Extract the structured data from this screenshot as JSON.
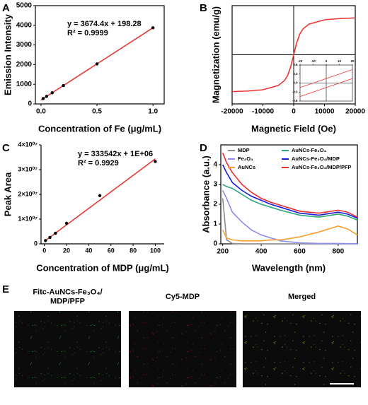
{
  "chart_data": [
    {
      "type": "scatter",
      "panel_label": "A",
      "xlabel": "Concentration of Fe (μg/mL)",
      "ylabel": "Emission Intensity",
      "x": [
        0.02,
        0.05,
        0.1,
        0.2,
        0.5,
        1.0
      ],
      "values": [
        272,
        382,
        566,
        933,
        2035,
        3873
      ],
      "fit": {
        "x": [
          0,
          1.0
        ],
        "values": [
          198.28,
          3872.68
        ]
      },
      "annotations": [
        "y = 3674.4x + 198.28",
        "R² = 0.9999"
      ],
      "point_color": "#000000",
      "color": "#e53935",
      "xlim": [
        -0.05,
        1.1
      ],
      "ylim": [
        0,
        5000
      ],
      "xticks": [
        {
          "value": 0,
          "label": "0.0"
        },
        0.5,
        {
          "value": 1.0,
          "label": "1.0"
        }
      ],
      "yticks": [
        0,
        1000,
        2000,
        3000,
        4000,
        5000
      ]
    },
    {
      "type": "line",
      "panel_label": "B",
      "xlabel": "Magnetic Field (Oe)",
      "ylabel": "Magnetization (emu/g)",
      "x": [
        -20000,
        -15000,
        -10000,
        -5000,
        -3000,
        -2000,
        -1000,
        -500,
        0,
        500,
        1000,
        2000,
        3000,
        5000,
        10000,
        15000,
        20000
      ],
      "values": [
        -30,
        -29.5,
        -28.5,
        -25,
        -21,
        -17,
        -10,
        -5,
        0,
        5,
        10,
        17,
        21,
        25,
        28.5,
        29.5,
        30
      ],
      "color": "#ee3333",
      "crosshair": true,
      "xlim": [
        -20000,
        20000
      ],
      "ylim": [
        -40,
        40
      ],
      "xticks": [
        -20000,
        -10000,
        0,
        10000,
        20000
      ],
      "inset": {
        "xlim": [
          -20,
          20
        ],
        "ylim": [
          -0.6,
          0.6
        ],
        "xticks": [
          -20,
          -10,
          0,
          10,
          20
        ],
        "yticks": [
          0.6,
          0.3,
          {
            "value": 0,
            "label": "0.0"
          },
          -0.3,
          -0.6
        ],
        "series": [
          {
            "x": [
              -20,
              20
            ],
            "values": [
              -0.45,
              0.15
            ],
            "color": "#ee3333"
          },
          {
            "x": [
              -20,
              20
            ],
            "values": [
              -0.15,
              0.45
            ],
            "color": "#ee3333"
          }
        ]
      }
    },
    {
      "type": "scatter",
      "panel_label": "C",
      "xlabel": "Concentration of MDP (μg/mL)",
      "ylabel": "Peak Area",
      "x": [
        1,
        5,
        10,
        20,
        50,
        100
      ],
      "values": [
        1300000,
        2600000,
        4300000,
        8300000,
        19500000,
        33300000
      ],
      "fit": {
        "x": [
          0,
          100
        ],
        "values": [
          1000000,
          34354200
        ]
      },
      "annotations": [
        "y = 333542x + 1E+06",
        "R² = 0.9929"
      ],
      "point_color": "#000000",
      "color": "#e53935",
      "xlim": [
        -3,
        108
      ],
      "ylim": [
        0,
        40000000
      ],
      "xticks": [
        0,
        20,
        40,
        60,
        80,
        100
      ],
      "yticks": [
        0,
        {
          "value": 10000000,
          "label": "1×10⁰⁷"
        },
        {
          "value": 20000000,
          "label": "2×10⁰⁷"
        },
        {
          "value": 30000000,
          "label": "3×10⁰⁷"
        },
        {
          "value": 40000000,
          "label": "4×10⁰⁷"
        }
      ]
    },
    {
      "type": "line",
      "panel_label": "D",
      "xlabel": "Wavelength (nm)",
      "ylabel": "Absorbance (a.u.)",
      "x": [
        200,
        220,
        250,
        300,
        350,
        400,
        450,
        500,
        600,
        700,
        800,
        850,
        900
      ],
      "series": [
        {
          "name": "MDP",
          "color": "#8c8c8c",
          "values": [
            2.3,
            0.2,
            0.02,
            0,
            0,
            0,
            0,
            0,
            0,
            0,
            0,
            0,
            0
          ]
        },
        {
          "name": "Fe₃O₄",
          "color": "#8c8cf0",
          "values": [
            2.7,
            2.3,
            1.6,
            1.1,
            0.7,
            0.45,
            0.3,
            0.15,
            0.05,
            0.02,
            0.02,
            0.01,
            0.01
          ]
        },
        {
          "name": "AuNCs",
          "color": "#f5a030",
          "values": [
            0.7,
            0.3,
            0.2,
            0.15,
            0.15,
            0.15,
            0.2,
            0.2,
            0.35,
            0.6,
            0.9,
            0.75,
            0.45
          ]
        },
        {
          "name": "AuNCs-Fe₃O₄",
          "color": "#2ca87f",
          "values": [
            3.0,
            2.9,
            2.8,
            2.5,
            2.2,
            2.0,
            1.85,
            1.7,
            1.45,
            1.35,
            1.5,
            1.4,
            1.2
          ]
        },
        {
          "name": "AuNCs-Fe₃O₄/MDP",
          "color": "#1a1adc",
          "values": [
            4.0,
            3.6,
            3.1,
            2.7,
            2.4,
            2.2,
            2.0,
            1.85,
            1.55,
            1.45,
            1.6,
            1.5,
            1.3
          ]
        },
        {
          "name": "AuNCs-Fe₃O₄/MDP/PFP",
          "color": "#e83030",
          "values": [
            4.6,
            4.1,
            3.6,
            3.0,
            2.6,
            2.3,
            2.1,
            1.95,
            1.65,
            1.55,
            1.7,
            1.6,
            1.35
          ]
        }
      ],
      "legend": "top",
      "xlim": [
        190,
        900
      ],
      "ylim": [
        0,
        5
      ],
      "xticks": [
        200,
        400,
        600,
        800
      ],
      "yticks": [
        0,
        1,
        2,
        3,
        4
      ]
    }
  ],
  "images": {
    "panel_label": "E",
    "panels": [
      {
        "label_lines": [
          "Fitc-AuNCs-Fe₃O₄/",
          "MDP/PFP"
        ],
        "color": "#2fbf3a"
      },
      {
        "label_lines": [
          "Cy5-MDP"
        ],
        "color": "#d02828"
      },
      {
        "label_lines": [
          "Merged"
        ],
        "color": "#d8c828"
      }
    ]
  }
}
